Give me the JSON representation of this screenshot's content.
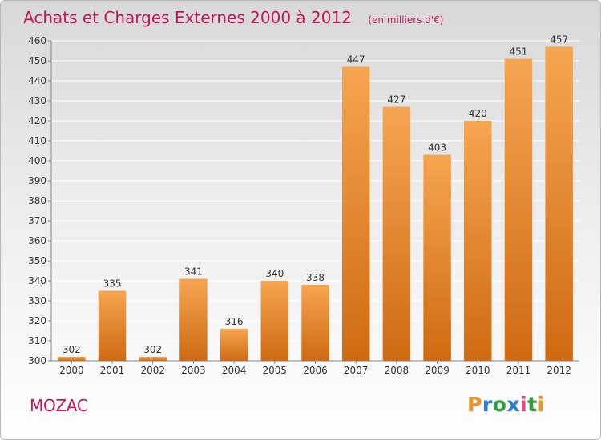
{
  "chart_data": {
    "type": "bar",
    "title": "Achats et Charges Externes 2000 à 2012",
    "subtitle": "(en milliers d'€)",
    "categories": [
      "2000",
      "2001",
      "2002",
      "2003",
      "2004",
      "2005",
      "2006",
      "2007",
      "2008",
      "2009",
      "2010",
      "2011",
      "2012"
    ],
    "values": [
      302,
      335,
      302,
      341,
      316,
      340,
      338,
      447,
      427,
      403,
      420,
      451,
      457
    ],
    "ylim": [
      300,
      460
    ],
    "yticks": [
      300,
      310,
      320,
      330,
      340,
      350,
      360,
      370,
      380,
      390,
      400,
      410,
      420,
      430,
      440,
      450,
      460
    ],
    "grid": true,
    "bar_color_top": "#f6a550",
    "bar_color_bottom": "#cf6a12",
    "grid_color": "#ffffff"
  },
  "footer": {
    "commune": "MOZAC",
    "commune_color": "#c2185b"
  },
  "logo": {
    "letters": [
      "P",
      "r",
      "o",
      "x",
      "i",
      "t",
      "i"
    ],
    "colors": [
      "#e8942a",
      "#2e7fc9",
      "#2e9e3e",
      "#2e7fc9",
      "#e34a7a",
      "#2e9e3e",
      "#e8942a"
    ]
  }
}
